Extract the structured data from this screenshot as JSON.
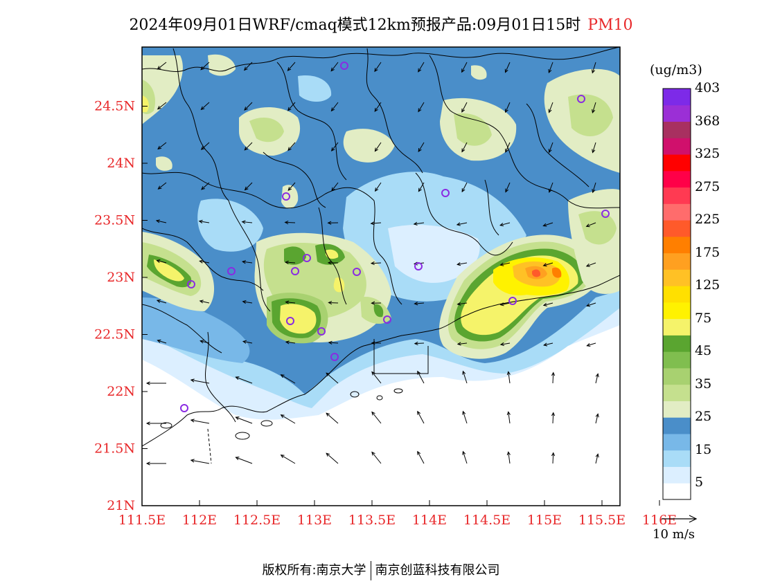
{
  "title": {
    "main": "2024年09月01日WRF/cmaq模式12km预报产品:09月01日15时",
    "pollutant": "PM10"
  },
  "axes": {
    "x_ticks": [
      "111.5E",
      "112E",
      "112.5E",
      "113E",
      "113.5E",
      "114E",
      "114.5E",
      "115E",
      "115.5E",
      "116E"
    ],
    "y_ticks": [
      "21N",
      "21.5N",
      "22N",
      "22.5N",
      "23N",
      "23.5N",
      "24N",
      "24.5N"
    ],
    "tick_color": "#e8282a"
  },
  "colorbar": {
    "units": "(ug/m3)",
    "colors": [
      "#ffffff",
      "#dcefff",
      "#a9dcf7",
      "#78b8e8",
      "#4a8ec9",
      "#e2edc4",
      "#c5e08e",
      "#a8d170",
      "#80be4f",
      "#5aa530",
      "#f5f36a",
      "#fff200",
      "#ffe000",
      "#ffc125",
      "#ffa020",
      "#ff7f00",
      "#ff5a2a",
      "#ff6c6c",
      "#ff3a52",
      "#ff0048",
      "#ff0000",
      "#d0106c",
      "#a83060",
      "#9b2fd6",
      "#7d2ae8"
    ],
    "labels": [
      "5",
      "15",
      "25",
      "35",
      "45",
      "75",
      "125",
      "175",
      "225",
      "275",
      "325",
      "368",
      "403"
    ]
  },
  "wind_legend": {
    "label": "10 m/s"
  },
  "footer": {
    "left": "版权所有:南京大学",
    "right": "南京创蓝科技有限公司"
  }
}
